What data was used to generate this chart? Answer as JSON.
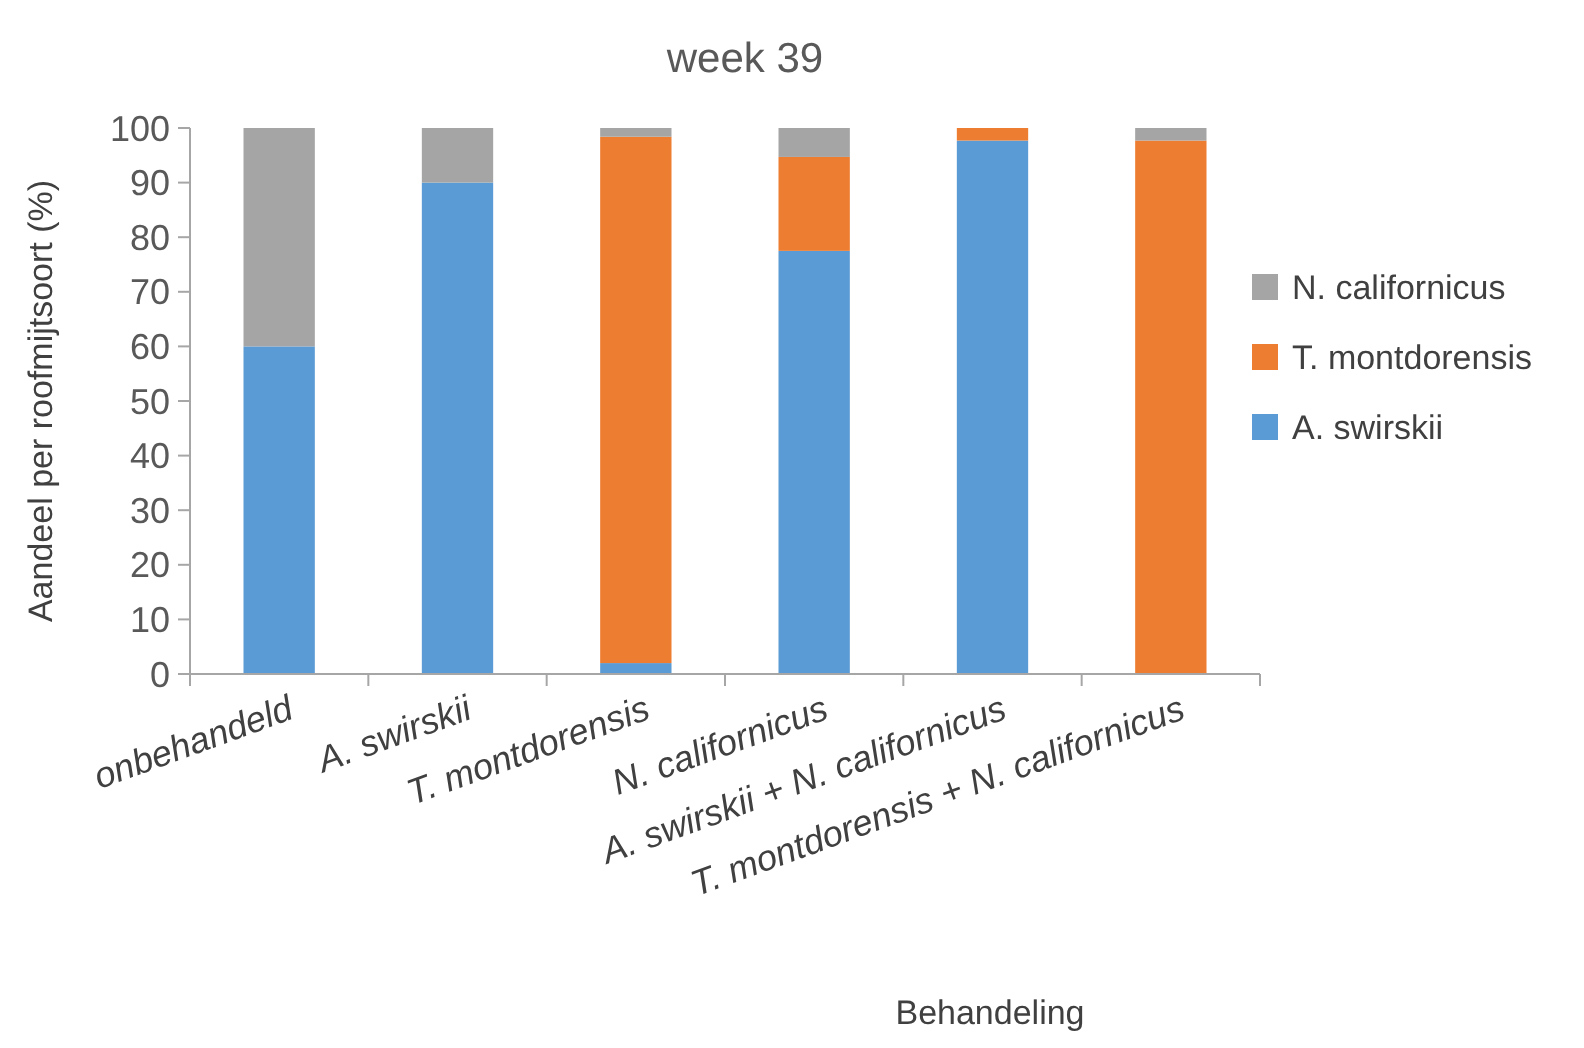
{
  "chart_data": {
    "type": "bar",
    "title": "week 39",
    "xlabel": "Behandeling",
    "ylabel": "Aandeel per roofmijtsoort (%)",
    "categories": [
      "onbehandeld",
      "A. swirskii",
      "T. montdorensis",
      "N. californicus",
      "A. swirskii + N. californicus",
      "T. montdorensis + N. californicus"
    ],
    "series": [
      {
        "name": "A. swirskii",
        "color": "#5b9bd5",
        "values": [
          60,
          90,
          2,
          77.5,
          97.7,
          0
        ]
      },
      {
        "name": "T. montdorensis",
        "color": "#ed7d31",
        "values": [
          0,
          0,
          96.4,
          17.2,
          2.3,
          97.7
        ]
      },
      {
        "name": "N. californicus",
        "color": "#a5a5a5",
        "values": [
          40,
          10,
          1.6,
          5.3,
          0,
          2.3
        ]
      }
    ],
    "stacked": true,
    "ylim": [
      0,
      100
    ],
    "yticks": [
      0,
      10,
      20,
      30,
      40,
      50,
      60,
      70,
      80,
      90,
      100
    ],
    "grid": false,
    "legend": "right"
  }
}
